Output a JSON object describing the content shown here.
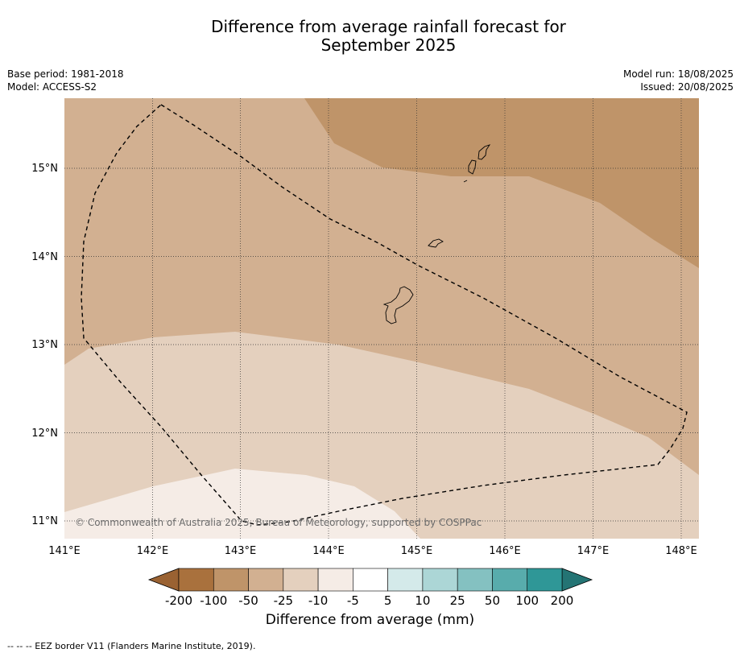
{
  "title_line1": "Difference from average rainfall forecast for",
  "title_line2": "September 2025",
  "meta_left": [
    "Base period: 1981-2018",
    "Model: ACCESS-S2"
  ],
  "meta_right": [
    "Model run: 18/08/2025",
    "Issued: 20/08/2025"
  ],
  "lat_labels": [
    "15°N",
    "14°N",
    "13°N",
    "12°N",
    "11°N"
  ],
  "lon_labels": [
    "141°E",
    "142°E",
    "143°E",
    "144°E",
    "145°E",
    "146°E",
    "147°E",
    "148°E"
  ],
  "copyright": "© Commonwealth of Australia 2025, Bureau of Meteorology, supported by COSPPac",
  "colorbar": {
    "ticks": [
      "-200",
      "-100",
      "-50",
      "-25",
      "-10",
      "-5",
      "5",
      "10",
      "25",
      "50",
      "100",
      "200"
    ],
    "colors": [
      "#a9713d",
      "#bf9469",
      "#d2b091",
      "#e4d0be",
      "#f5ece6",
      "#ffffff",
      "#d4eaea",
      "#acd6d6",
      "#84c1c1",
      "#58acac",
      "#2f9797"
    ],
    "low_color": "#9a6232",
    "high_color": "#247474",
    "label": "Difference from average (mm)"
  },
  "footnote": "--  --  -- EEZ border V11 (Flanders Marine Institute, 2019)."
}
